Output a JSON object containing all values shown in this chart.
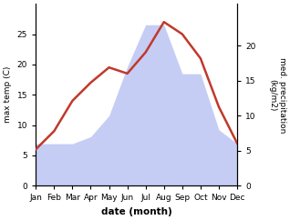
{
  "months": [
    "Jan",
    "Feb",
    "Mar",
    "Apr",
    "May",
    "Jun",
    "Jul",
    "Aug",
    "Sep",
    "Oct",
    "Nov",
    "Dec"
  ],
  "temperature": [
    6,
    9,
    14,
    17,
    19.5,
    18.5,
    22,
    27,
    25,
    21,
    13,
    7
  ],
  "precipitation": [
    6,
    6,
    6,
    7,
    10,
    17,
    23,
    23,
    16,
    16,
    8,
    6
  ],
  "temp_color": "#c0392b",
  "precip_fill_color": "#c5cdf5",
  "temp_ylim": [
    0,
    30
  ],
  "precip_ylim": [
    0,
    26
  ],
  "temp_yticks": [
    0,
    5,
    10,
    15,
    20,
    25
  ],
  "precip_yticks": [
    0,
    5,
    10,
    15,
    20
  ],
  "xlabel": "date (month)",
  "ylabel_left": "max temp (C)",
  "ylabel_right": "med. precipitation\n(kg/m2)",
  "background_color": "#ffffff"
}
